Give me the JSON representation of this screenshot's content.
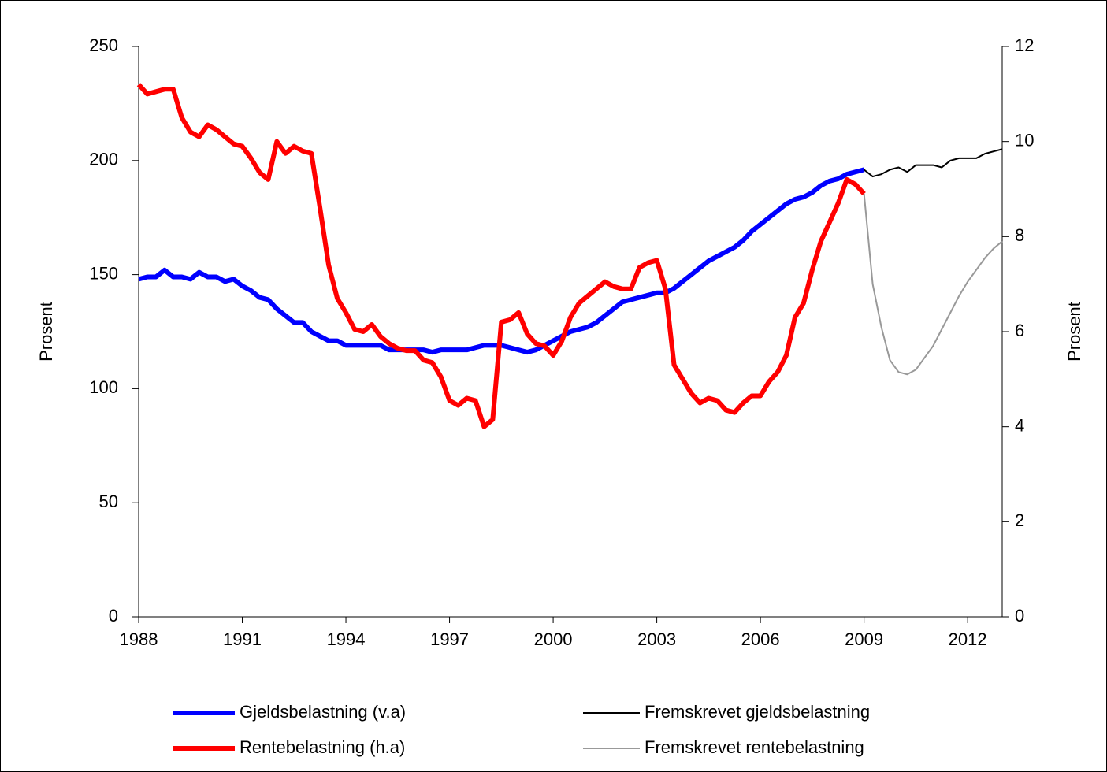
{
  "chart_data": {
    "type": "line",
    "xlim": [
      1988,
      2013
    ],
    "xticks": [
      1988,
      1991,
      1994,
      1997,
      2000,
      2003,
      2006,
      2009,
      2012
    ],
    "ylim": [
      0,
      250
    ],
    "yticks": [
      0,
      50,
      100,
      150,
      200,
      250
    ],
    "y2lim": [
      0,
      12
    ],
    "y2ticks": [
      0,
      2,
      4,
      6,
      8,
      10,
      12
    ],
    "ylabel": "Prosent",
    "y2label": "Prosent",
    "series": [
      {
        "name": "Gjeldsbelastning (v.a)",
        "color": "#0000ff",
        "line_width": 6,
        "x": [
          1988,
          1988.25,
          1988.5,
          1988.75,
          1989,
          1989.25,
          1989.5,
          1989.75,
          1990,
          1990.25,
          1990.5,
          1990.75,
          1991,
          1991.25,
          1991.5,
          1991.75,
          1992,
          1992.25,
          1992.5,
          1992.75,
          1993,
          1993.25,
          1993.5,
          1993.75,
          1994,
          1994.25,
          1994.5,
          1994.75,
          1995,
          1995.25,
          1995.5,
          1995.75,
          1996,
          1996.25,
          1996.5,
          1996.75,
          1997,
          1997.25,
          1997.5,
          1997.75,
          1998,
          1998.25,
          1998.5,
          1998.75,
          1999,
          1999.25,
          1999.5,
          1999.75,
          2000,
          2000.25,
          2000.5,
          2000.75,
          2001,
          2001.25,
          2001.5,
          2001.75,
          2002,
          2002.25,
          2002.5,
          2002.75,
          2003,
          2003.25,
          2003.5,
          2003.75,
          2004,
          2004.25,
          2004.5,
          2004.75,
          2005,
          2005.25,
          2005.5,
          2005.75,
          2006,
          2006.25,
          2006.5,
          2006.75,
          2007,
          2007.25,
          2007.5,
          2007.75,
          2008,
          2008.25,
          2008.5,
          2008.75,
          2009
        ],
        "values": [
          148,
          149,
          149,
          152,
          149,
          149,
          148,
          151,
          149,
          149,
          147,
          148,
          145,
          143,
          140,
          139,
          135,
          132,
          129,
          129,
          125,
          123,
          121,
          121,
          119,
          119,
          119,
          119,
          119,
          117,
          117,
          117,
          117,
          117,
          116,
          117,
          117,
          117,
          117,
          118,
          119,
          119,
          119,
          118,
          117,
          116,
          117,
          119,
          121,
          123,
          125,
          126,
          127,
          129,
          132,
          135,
          138,
          139,
          140,
          141,
          142,
          142,
          144,
          147,
          150,
          153,
          156,
          158,
          160,
          162,
          165,
          169,
          172,
          175,
          178,
          181,
          183,
          184,
          186,
          189,
          191,
          192,
          194,
          195,
          196
        ]
      },
      {
        "name": "Rentebelastning (h.a)",
        "color": "#ff0000",
        "line_width": 6,
        "axis": "y2",
        "x": [
          1988,
          1988.25,
          1988.5,
          1988.75,
          1989,
          1989.25,
          1989.5,
          1989.75,
          1990,
          1990.25,
          1990.5,
          1990.75,
          1991,
          1991.25,
          1991.5,
          1991.75,
          1992,
          1992.25,
          1992.5,
          1992.75,
          1993,
          1993.25,
          1993.5,
          1993.75,
          1994,
          1994.25,
          1994.5,
          1994.75,
          1995,
          1995.25,
          1995.5,
          1995.75,
          1996,
          1996.25,
          1996.5,
          1996.75,
          1997,
          1997.25,
          1997.5,
          1997.75,
          1998,
          1998.25,
          1998.5,
          1998.75,
          1999,
          1999.25,
          1999.5,
          1999.75,
          2000,
          2000.25,
          2000.5,
          2000.75,
          2001,
          2001.25,
          2001.5,
          2001.75,
          2002,
          2002.25,
          2002.5,
          2002.75,
          2003,
          2003.25,
          2003.5,
          2003.75,
          2004,
          2004.25,
          2004.5,
          2004.75,
          2005,
          2005.25,
          2005.5,
          2005.75,
          2006,
          2006.25,
          2006.5,
          2006.75,
          2007,
          2007.25,
          2007.5,
          2007.75,
          2008,
          2008.25,
          2008.5,
          2008.75,
          2009
        ],
        "values": [
          11.2,
          11.0,
          11.05,
          11.1,
          11.1,
          10.5,
          10.2,
          10.1,
          10.35,
          10.25,
          10.1,
          9.95,
          9.9,
          9.65,
          9.35,
          9.2,
          10.0,
          9.75,
          9.9,
          9.8,
          9.75,
          8.6,
          7.4,
          6.7,
          6.4,
          6.05,
          6.0,
          6.15,
          5.9,
          5.75,
          5.65,
          5.6,
          5.6,
          5.4,
          5.35,
          5.05,
          4.55,
          4.45,
          4.6,
          4.55,
          4.0,
          4.15,
          6.2,
          6.25,
          6.4,
          5.95,
          5.75,
          5.7,
          5.5,
          5.8,
          6.3,
          6.6,
          6.75,
          6.9,
          7.05,
          6.95,
          6.9,
          6.9,
          7.35,
          7.45,
          7.5,
          6.9,
          5.3,
          5.0,
          4.7,
          4.5,
          4.6,
          4.55,
          4.35,
          4.3,
          4.5,
          4.65,
          4.65,
          4.95,
          5.15,
          5.5,
          6.3,
          6.6,
          7.3,
          7.9,
          8.3,
          8.7,
          9.2,
          9.1,
          8.9
        ]
      },
      {
        "name": "Fremskrevet gjeldsbelastning",
        "color": "#000000",
        "line_width": 2,
        "x": [
          2009,
          2009.25,
          2009.5,
          2009.75,
          2010,
          2010.25,
          2010.5,
          2010.75,
          2011,
          2011.25,
          2011.5,
          2011.75,
          2012,
          2012.25,
          2012.5,
          2012.75,
          2013
        ],
        "values": [
          196,
          193,
          194,
          196,
          197,
          195,
          198,
          198,
          198,
          197,
          200,
          201,
          201,
          201,
          203,
          204,
          205
        ]
      },
      {
        "name": "Fremskrevet rentebelastning",
        "color": "#999999",
        "line_width": 2,
        "axis": "y2",
        "x": [
          2009,
          2009.25,
          2009.5,
          2009.75,
          2010,
          2010.25,
          2010.5,
          2010.75,
          2011,
          2011.25,
          2011.5,
          2011.75,
          2012,
          2012.25,
          2012.5,
          2012.75,
          2013
        ],
        "values": [
          8.9,
          7.0,
          6.1,
          5.4,
          5.15,
          5.1,
          5.2,
          5.45,
          5.7,
          6.05,
          6.4,
          6.75,
          7.05,
          7.3,
          7.55,
          7.75,
          7.9
        ]
      }
    ]
  }
}
